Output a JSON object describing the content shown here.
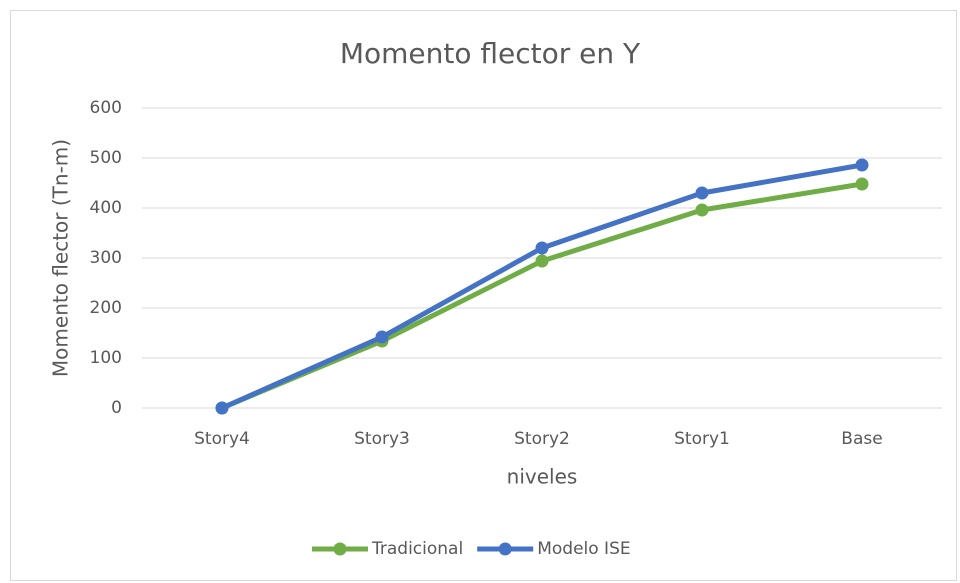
{
  "chart_data": {
    "type": "line",
    "title": "Momento flector en Y",
    "x_label": "niveles",
    "y_label": "Momento flector (Tn-m)",
    "categories": [
      "Story4",
      "Story3",
      "Story2",
      "Story1",
      "Base"
    ],
    "series": [
      {
        "name": "Tradicional",
        "color": "#70ad47",
        "values": [
          0,
          134,
          294,
          396,
          448
        ]
      },
      {
        "name": "Modelo ISE",
        "color": "#4472c4",
        "values": [
          0,
          142,
          320,
          430,
          486
        ]
      }
    ],
    "ylim": [
      0,
      600
    ],
    "yticks": [
      0,
      100,
      200,
      300,
      400,
      500,
      600
    ],
    "grid": true,
    "legend": "bottom"
  }
}
